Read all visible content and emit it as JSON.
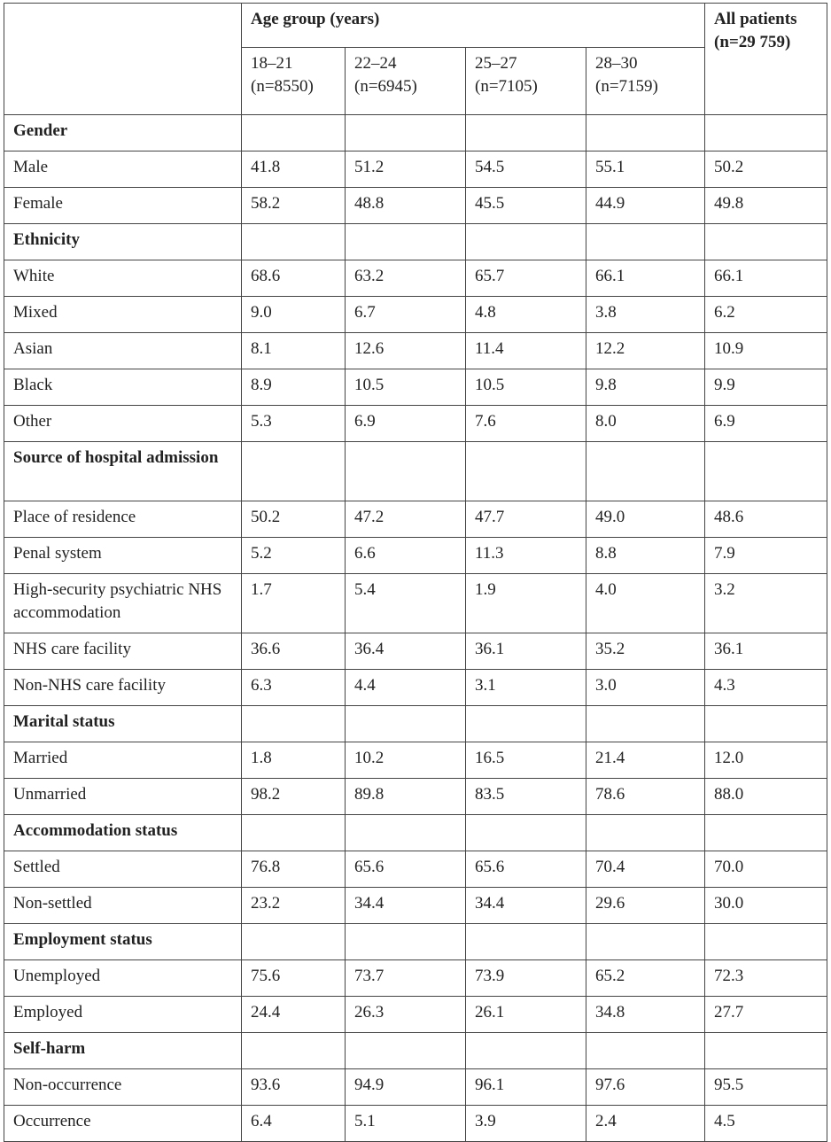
{
  "header": {
    "age_group": "Age group (years)",
    "all_patients": "All patients (n=29 759)",
    "groups": [
      {
        "range": "18–21",
        "n": "(n=8550)"
      },
      {
        "range": "22–24",
        "n": "(n=6945)"
      },
      {
        "range": "25–27",
        "n": "(n=7105)"
      },
      {
        "range": "28–30",
        "n": "(n=7159)"
      }
    ]
  },
  "rows": [
    {
      "section": true,
      "label": "Gender"
    },
    {
      "label": "Male",
      "values": [
        "41.8",
        "51.2",
        "54.5",
        "55.1",
        "50.2"
      ]
    },
    {
      "label": "Female",
      "values": [
        "58.2",
        "48.8",
        "45.5",
        "44.9",
        "49.8"
      ]
    },
    {
      "section": true,
      "label": "Ethnicity"
    },
    {
      "label": "White",
      "values": [
        "68.6",
        "63.2",
        "65.7",
        "66.1",
        "66.1"
      ]
    },
    {
      "label": "Mixed",
      "values": [
        "9.0",
        "6.7",
        "4.8",
        "3.8",
        "6.2"
      ]
    },
    {
      "label": "Asian",
      "values": [
        "8.1",
        "12.6",
        "11.4",
        "12.2",
        "10.9"
      ]
    },
    {
      "label": "Black",
      "values": [
        "8.9",
        "10.5",
        "10.5",
        "9.8",
        "9.9"
      ]
    },
    {
      "label": "Other",
      "values": [
        "5.3",
        "6.9",
        "7.6",
        "8.0",
        "6.9"
      ]
    },
    {
      "section": true,
      "label": "Source of hospital admission",
      "tall": true
    },
    {
      "label": "Place of residence",
      "values": [
        "50.2",
        "47.2",
        "47.7",
        "49.0",
        "48.6"
      ]
    },
    {
      "label": "Penal system",
      "values": [
        "5.2",
        "6.6",
        "11.3",
        "8.8",
        "7.9"
      ]
    },
    {
      "label": "High-security psychiatric NHS accommodation",
      "values": [
        "1.7",
        "5.4",
        "1.9",
        "4.0",
        "3.2"
      ],
      "tall": true
    },
    {
      "label": "NHS care facility",
      "values": [
        "36.6",
        "36.4",
        "36.1",
        "35.2",
        "36.1"
      ]
    },
    {
      "label": "Non-NHS care facility",
      "values": [
        "6.3",
        "4.4",
        "3.1",
        "3.0",
        "4.3"
      ]
    },
    {
      "section": true,
      "label": "Marital status"
    },
    {
      "label": "Married",
      "values": [
        "1.8",
        "10.2",
        "16.5",
        "21.4",
        "12.0"
      ]
    },
    {
      "label": "Unmarried",
      "values": [
        "98.2",
        "89.8",
        "83.5",
        "78.6",
        "88.0"
      ]
    },
    {
      "section": true,
      "label": "Accommodation status"
    },
    {
      "label": "Settled",
      "values": [
        "76.8",
        "65.6",
        "65.6",
        "70.4",
        "70.0"
      ]
    },
    {
      "label": "Non-settled",
      "values": [
        "23.2",
        "34.4",
        "34.4",
        "29.6",
        "30.0"
      ]
    },
    {
      "section": true,
      "label": "Employment status"
    },
    {
      "label": "Unemployed",
      "values": [
        "75.6",
        "73.7",
        "73.9",
        "65.2",
        "72.3"
      ]
    },
    {
      "label": "Employed",
      "values": [
        "24.4",
        "26.3",
        "26.1",
        "34.8",
        "27.7"
      ]
    },
    {
      "section": true,
      "label": "Self-harm"
    },
    {
      "label": "Non-occurrence",
      "values": [
        "93.6",
        "94.9",
        "96.1",
        "97.6",
        "95.5"
      ]
    },
    {
      "label": "Occurrence",
      "values": [
        "6.4",
        "5.1",
        "3.9",
        "2.4",
        "4.5"
      ]
    }
  ]
}
